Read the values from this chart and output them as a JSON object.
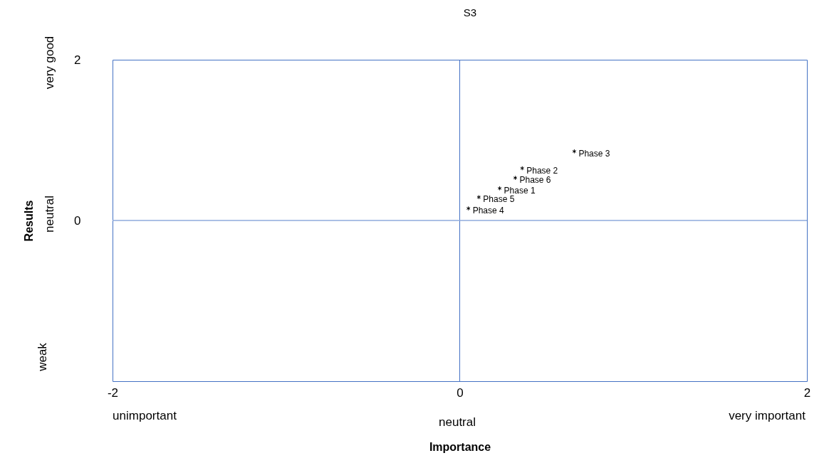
{
  "chart_data": {
    "type": "scatter",
    "title": "S3",
    "xlabel": "Importance",
    "ylabel": "Results",
    "xlim": [
      -2,
      2
    ],
    "ylim": [
      -2,
      2
    ],
    "xticks": [
      -2,
      0,
      2
    ],
    "yticks": [
      0,
      2
    ],
    "grid": false,
    "marker": "cross",
    "ref_lines": [
      {
        "axis": "x",
        "value": 0,
        "color": "#4472c4"
      },
      {
        "axis": "y",
        "value": 0,
        "color": "#8faadc"
      }
    ],
    "series": [
      {
        "name": "Phase 3",
        "color": "#000000",
        "x": [
          0.66
        ],
        "values": [
          0.86
        ]
      },
      {
        "name": "Phase 2",
        "color": "#000000",
        "x": [
          0.36
        ],
        "values": [
          0.65
        ]
      },
      {
        "name": "Phase 6",
        "color": "#000000",
        "x": [
          0.32
        ],
        "values": [
          0.53
        ]
      },
      {
        "name": "Phase 1",
        "color": "#000000",
        "x": [
          0.23
        ],
        "values": [
          0.4
        ]
      },
      {
        "name": "Phase 5",
        "color": "#000000",
        "x": [
          0.11
        ],
        "values": [
          0.29
        ]
      },
      {
        "name": "Phase 4",
        "color": "#000000",
        "x": [
          0.05
        ],
        "values": [
          0.15
        ]
      }
    ],
    "annotations": [
      "very good",
      "neutral",
      "weak",
      "unimportant",
      "neutral",
      "very important"
    ]
  }
}
